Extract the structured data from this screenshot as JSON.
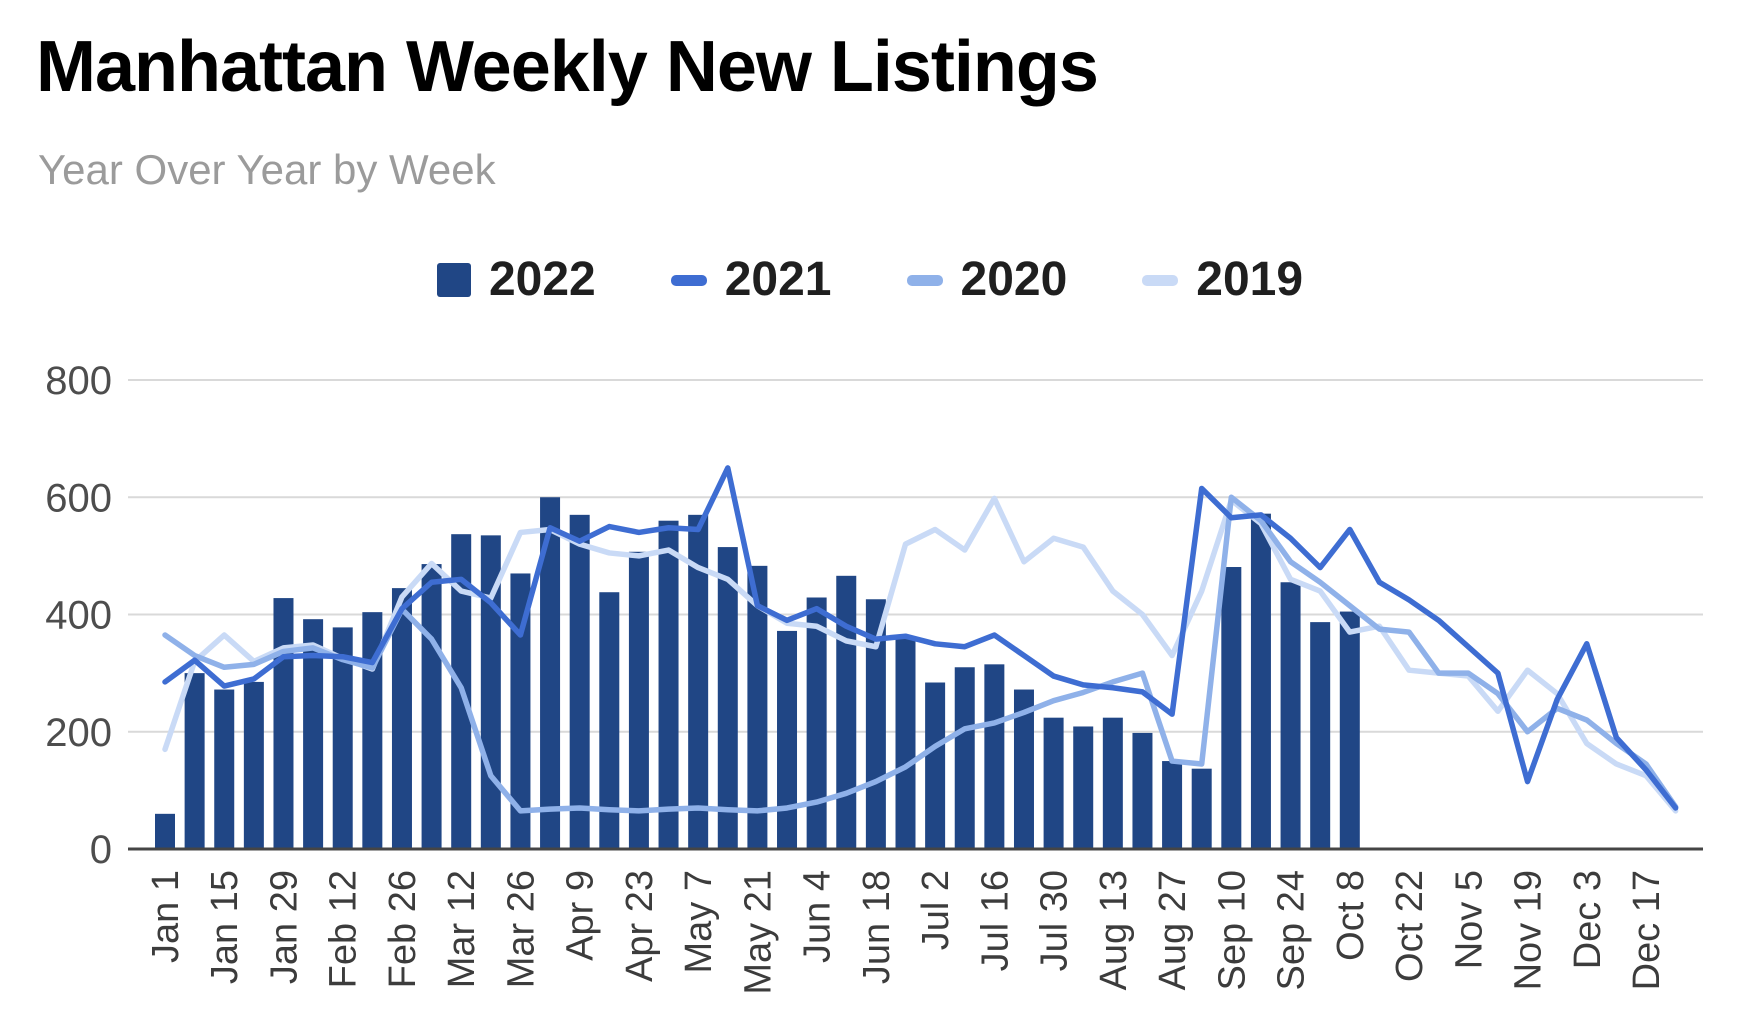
{
  "header": {
    "title": "Manhattan Weekly New Listings",
    "subtitle": "Year Over Year by Week"
  },
  "chart_data": {
    "type": "bar",
    "combo": "bars for 2022, lines for 2021/2020/2019",
    "title": "Manhattan Weekly New Listings",
    "subtitle": "Year Over Year by Week",
    "xlabel": "",
    "ylabel": "",
    "ylim": [
      0,
      800
    ],
    "y_ticks": [
      0,
      200,
      400,
      600,
      800
    ],
    "grid": "horizontal",
    "legend_position": "top",
    "x_tick_labels_shown": [
      "Jan 1",
      "Jan 15",
      "Jan 29",
      "Feb 12",
      "Feb 26",
      "Mar 12",
      "Mar 26",
      "Apr 9",
      "Apr 23",
      "May 7",
      "May 21",
      "Jun 4",
      "Jun 18",
      "Jul 2",
      "Jul 16",
      "Jul 30",
      "Aug 13",
      "Aug 27",
      "Sep 10",
      "Sep 24",
      "Oct 8",
      "Oct 22",
      "Nov 5",
      "Nov 19",
      "Dec 3",
      "Dec 17"
    ],
    "categories": [
      "Jan 1",
      "Jan 8",
      "Jan 15",
      "Jan 22",
      "Jan 29",
      "Feb 5",
      "Feb 12",
      "Feb 19",
      "Feb 26",
      "Mar 5",
      "Mar 12",
      "Mar 19",
      "Mar 26",
      "Apr 2",
      "Apr 9",
      "Apr 16",
      "Apr 23",
      "Apr 30",
      "May 7",
      "May 14",
      "May 21",
      "May 28",
      "Jun 4",
      "Jun 11",
      "Jun 18",
      "Jun 25",
      "Jul 2",
      "Jul 9",
      "Jul 16",
      "Jul 23",
      "Jul 30",
      "Aug 6",
      "Aug 13",
      "Aug 20",
      "Aug 27",
      "Sep 3",
      "Sep 10",
      "Sep 17",
      "Sep 24",
      "Oct 1",
      "Oct 8",
      "Oct 15",
      "Oct 22",
      "Oct 29",
      "Nov 5",
      "Nov 12",
      "Nov 19",
      "Nov 26",
      "Dec 3",
      "Dec 10",
      "Dec 17",
      "Dec 24"
    ],
    "series": [
      {
        "name": "2022",
        "type": "bar",
        "color": "#204685",
        "values": [
          60,
          300,
          272,
          285,
          428,
          392,
          378,
          404,
          445,
          486,
          537,
          535,
          470,
          600,
          570,
          438,
          507,
          560,
          570,
          515,
          483,
          372,
          429,
          466,
          426,
          363,
          284,
          310,
          315,
          272,
          224,
          209,
          224,
          198,
          150,
          137,
          481,
          572,
          455,
          387,
          405,
          null,
          null,
          null,
          null,
          null,
          null,
          null,
          null,
          null,
          null,
          null
        ]
      },
      {
        "name": "2021",
        "type": "line",
        "color": "#3e6dd2",
        "values": [
          285,
          322,
          278,
          290,
          328,
          330,
          328,
          318,
          410,
          455,
          460,
          420,
          365,
          548,
          525,
          550,
          540,
          548,
          545,
          650,
          415,
          390,
          410,
          380,
          358,
          363,
          350,
          345,
          365,
          330,
          295,
          280,
          275,
          268,
          230,
          615,
          565,
          570,
          530,
          480,
          545,
          455,
          425,
          390,
          345,
          300,
          115,
          255,
          350,
          190,
          135,
          70
        ]
      },
      {
        "name": "2020",
        "type": "line",
        "color": "#8fb1e9",
        "values": [
          365,
          330,
          310,
          315,
          337,
          343,
          323,
          309,
          409,
          358,
          275,
          125,
          65,
          68,
          70,
          67,
          65,
          68,
          70,
          67,
          65,
          70,
          80,
          95,
          115,
          140,
          175,
          205,
          215,
          233,
          253,
          267,
          285,
          300,
          150,
          145,
          600,
          560,
          490,
          455,
          415,
          375,
          370,
          300,
          300,
          265,
          200,
          240,
          220,
          180,
          145,
          72
        ]
      },
      {
        "name": "2019",
        "type": "line",
        "color": "#c9daf6",
        "values": [
          170,
          320,
          365,
          320,
          343,
          348,
          325,
          307,
          430,
          487,
          440,
          428,
          540,
          545,
          520,
          505,
          500,
          510,
          480,
          460,
          415,
          385,
          380,
          355,
          345,
          520,
          545,
          510,
          598,
          490,
          530,
          515,
          440,
          400,
          330,
          440,
          595,
          555,
          460,
          440,
          370,
          380,
          305,
          300,
          295,
          235,
          305,
          265,
          180,
          145,
          125,
          65
        ]
      }
    ]
  },
  "axes_style": {
    "gridline_color": "#d9d9d9",
    "baseline_color": "#454545",
    "tick_label_color": "#4d4d4d"
  }
}
